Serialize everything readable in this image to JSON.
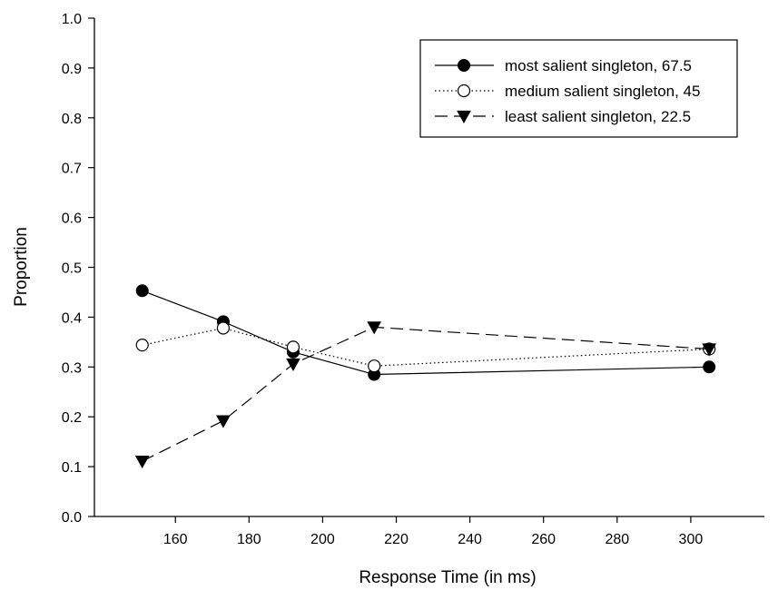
{
  "chart_data": {
    "type": "line",
    "xlabel": "Response Time (in ms)",
    "ylabel": "Proportion",
    "xlim": [
      138,
      320
    ],
    "ylim": [
      0,
      1.0
    ],
    "xticks": [
      160,
      180,
      200,
      220,
      240,
      260,
      280,
      300
    ],
    "xtick_labels": [
      "160",
      "180",
      "200",
      "220",
      "240",
      "260",
      "280",
      "300"
    ],
    "yticks": [
      0,
      0.1,
      0.2,
      0.3,
      0.4,
      0.5,
      0.6,
      0.7,
      0.8,
      0.9,
      1.0
    ],
    "ytick_labels": [
      "0.0",
      "0.1",
      "0.2",
      "0.3",
      "0.4",
      "0.5",
      "0.6",
      "0.7",
      "0.8",
      "0.9",
      "1.0"
    ],
    "grid": false,
    "legend_position": "top-right",
    "series": [
      {
        "name": "most salient singleton, 67.5",
        "line_style": "solid",
        "marker": "filled-circle",
        "x": [
          151,
          173,
          192,
          214,
          305
        ],
        "y": [
          0.453,
          0.391,
          0.33,
          0.285,
          0.3
        ]
      },
      {
        "name": "medium salient singleton, 45",
        "line_style": "dotted",
        "marker": "open-circle",
        "x": [
          151,
          173,
          192,
          214,
          305
        ],
        "y": [
          0.344,
          0.378,
          0.34,
          0.302,
          0.336
        ]
      },
      {
        "name": "least salient singleton, 22.5",
        "line_style": "dashed",
        "marker": "filled-triangle-down",
        "x": [
          151,
          173,
          192,
          214,
          305
        ],
        "y": [
          0.111,
          0.192,
          0.306,
          0.38,
          0.336
        ]
      }
    ]
  }
}
